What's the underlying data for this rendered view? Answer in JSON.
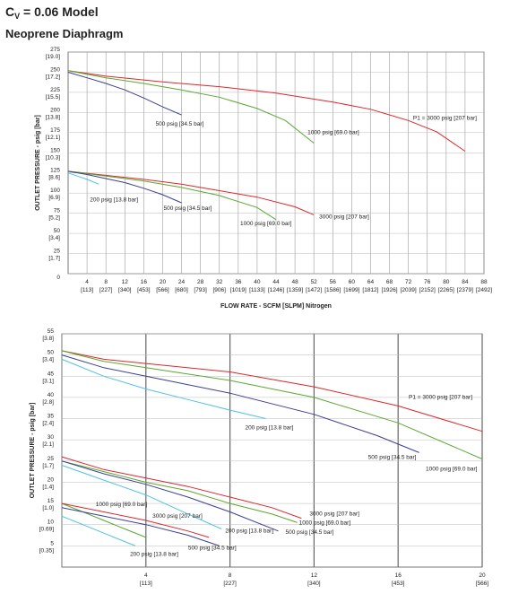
{
  "chart_data": [
    {
      "type": "line",
      "title": [
        "C",
        "V",
        " = 0.06 Model"
      ],
      "subtitle": "Neoprene Diaphragm",
      "x_label": "FLOW RATE - SCFM [SLPM] Nitrogen",
      "y_label": "OUTLET PRESSURE - psig [bar]",
      "xlim": [
        0,
        88
      ],
      "ylim": [
        0,
        275
      ],
      "grid": true,
      "xticks": [
        {
          "value": 4,
          "label": "4",
          "sublabel": "[113]"
        },
        {
          "value": 8,
          "label": "8",
          "sublabel": "[227]"
        },
        {
          "value": 12,
          "label": "12",
          "sublabel": "[340]"
        },
        {
          "value": 16,
          "label": "16",
          "sublabel": "[453]"
        },
        {
          "value": 20,
          "label": "20",
          "sublabel": "[566]"
        },
        {
          "value": 24,
          "label": "24",
          "sublabel": "[680]"
        },
        {
          "value": 28,
          "label": "28",
          "sublabel": "[793]"
        },
        {
          "value": 32,
          "label": "32",
          "sublabel": "[906]"
        },
        {
          "value": 36,
          "label": "36",
          "sublabel": "[1019]"
        },
        {
          "value": 40,
          "label": "40",
          "sublabel": "[1133]"
        },
        {
          "value": 44,
          "label": "44",
          "sublabel": "[1246]"
        },
        {
          "value": 48,
          "label": "48",
          "sublabel": "[1359]"
        },
        {
          "value": 52,
          "label": "52",
          "sublabel": "[1472]"
        },
        {
          "value": 56,
          "label": "56",
          "sublabel": "[1586]"
        },
        {
          "value": 60,
          "label": "60",
          "sublabel": "[1699]"
        },
        {
          "value": 64,
          "label": "64",
          "sublabel": "[1812]"
        },
        {
          "value": 68,
          "label": "68",
          "sublabel": "[1926]"
        },
        {
          "value": 72,
          "label": "72",
          "sublabel": "[2039]"
        },
        {
          "value": 76,
          "label": "76",
          "sublabel": "[2152]"
        },
        {
          "value": 80,
          "label": "80",
          "sublabel": "[2265]"
        },
        {
          "value": 84,
          "label": "84",
          "sublabel": "[2379]"
        },
        {
          "value": 88,
          "label": "88",
          "sublabel": "[2492]"
        }
      ],
      "yticks": [
        0,
        {
          "value": 25,
          "label": "25",
          "sublabel": "[1.7]"
        },
        {
          "value": 50,
          "label": "50",
          "sublabel": "[3.4]"
        },
        {
          "value": 75,
          "label": "75",
          "sublabel": "[5.2]"
        },
        {
          "value": 100,
          "label": "100",
          "sublabel": "[6.9]"
        },
        {
          "value": 125,
          "label": "125",
          "sublabel": "[8.6]"
        },
        {
          "value": 150,
          "label": "150",
          "sublabel": "[10.3]"
        },
        {
          "value": 175,
          "label": "175",
          "sublabel": "[12.1]"
        },
        {
          "value": 200,
          "label": "200",
          "sublabel": "[13.8]"
        },
        {
          "value": 225,
          "label": "225",
          "sublabel": "[15.5]"
        },
        {
          "value": 250,
          "label": "250",
          "sublabel": "[17.2]"
        },
        {
          "value": 275,
          "label": "275",
          "sublabel": "[19.0]"
        }
      ],
      "series": [
        {
          "name": "P1 = 3000 psig [207 bar]",
          "color": "#e0262b",
          "x": [
            0,
            8,
            20,
            32,
            44,
            56,
            64,
            72,
            78,
            84
          ],
          "values": [
            252,
            245,
            238,
            232,
            224,
            213,
            204,
            190,
            176,
            152
          ]
        },
        {
          "name": "1000 psig [69.0 bar]",
          "color": "#5aa832",
          "x": [
            0,
            8,
            16,
            24,
            32,
            40,
            46,
            52
          ],
          "values": [
            252,
            243,
            236,
            228,
            219,
            205,
            190,
            162
          ]
        },
        {
          "name": "500 psig [34.5 bar]",
          "color": "#3a3f8f",
          "x": [
            0,
            4,
            8,
            12,
            16,
            20,
            24
          ],
          "values": [
            250,
            243,
            236,
            228,
            218,
            207,
            197
          ]
        },
        {
          "name": "3000 psig [207 bar]",
          "color": "#e0262b",
          "x": [
            0,
            8,
            16,
            24,
            32,
            40,
            48,
            52
          ],
          "values": [
            127,
            122,
            117,
            111,
            103,
            95,
            83,
            73
          ]
        },
        {
          "name": "1000 psig [69.0 bar]",
          "color": "#5aa832",
          "x": [
            0,
            8,
            16,
            24,
            32,
            40,
            44
          ],
          "values": [
            127,
            121,
            115,
            107,
            97,
            82,
            67
          ]
        },
        {
          "name": "500 psig [34.5 bar]",
          "color": "#3a3f8f",
          "x": [
            0,
            4,
            8,
            12,
            16,
            20,
            24
          ],
          "values": [
            127,
            123,
            118,
            113,
            106,
            98,
            88
          ]
        },
        {
          "name": "200 psig [13.8 bar]",
          "color": "#4ec3e0",
          "x": [
            0,
            2,
            4,
            6.5
          ],
          "values": [
            125,
            121,
            117,
            111
          ]
        }
      ]
    },
    {
      "type": "line",
      "y_label": "OUTLET PRESSURE - psig [bar]",
      "xlim": [
        0,
        20
      ],
      "ylim": [
        0,
        55
      ],
      "grid": true,
      "xticks": [
        {
          "value": 4,
          "label": "4",
          "sublabel": "[113]"
        },
        {
          "value": 8,
          "label": "8",
          "sublabel": "[227]"
        },
        {
          "value": 12,
          "label": "12",
          "sublabel": "[340]"
        },
        {
          "value": 16,
          "label": "16",
          "sublabel": "[453]"
        },
        {
          "value": 20,
          "label": "20",
          "sublabel": "[566]"
        }
      ],
      "yticks": [
        {
          "value": 5,
          "label": "5",
          "sublabel": "[0.35]"
        },
        {
          "value": 10,
          "label": "10",
          "sublabel": "[0.69]"
        },
        {
          "value": 15,
          "label": "15",
          "sublabel": "[1.0]"
        },
        {
          "value": 20,
          "label": "20",
          "sublabel": "[1.4]"
        },
        {
          "value": 25,
          "label": "25",
          "sublabel": "[1.7]"
        },
        {
          "value": 30,
          "label": "30",
          "sublabel": "[2.1]"
        },
        {
          "value": 35,
          "label": "35",
          "sublabel": "[2.4]"
        },
        {
          "value": 40,
          "label": "40",
          "sublabel": "[2.8]"
        },
        {
          "value": 45,
          "label": "45",
          "sublabel": "[3.1]"
        },
        {
          "value": 50,
          "label": "50",
          "sublabel": "[3.4]"
        },
        {
          "value": 55,
          "label": "55",
          "sublabel": "[3.8]"
        }
      ],
      "series": [
        {
          "name": "P1 = 3000 psig [207 bar]",
          "color": "#e0262b",
          "x": [
            0,
            2,
            4,
            8,
            12,
            16,
            20
          ],
          "values": [
            51,
            49,
            48,
            46,
            42.5,
            38,
            32
          ]
        },
        {
          "name": "1000 psig [69.0 bar]",
          "color": "#5aa832",
          "x": [
            0,
            2,
            4,
            8,
            12,
            16,
            20
          ],
          "values": [
            51,
            48.5,
            47,
            44,
            40,
            34,
            25.5
          ]
        },
        {
          "name": "500 psig [34.5 bar]",
          "color": "#3a3f8f",
          "x": [
            0,
            2,
            4,
            8,
            12,
            15,
            17
          ],
          "values": [
            50,
            47,
            45,
            41,
            36,
            31,
            27
          ]
        },
        {
          "name": "200 psig [13.8 bar]",
          "color": "#4ec3e0",
          "x": [
            0,
            2,
            4,
            6,
            8,
            9.7
          ],
          "values": [
            49,
            45,
            42,
            39.5,
            37,
            35
          ]
        },
        {
          "name": "3000 psig [207 bar]",
          "color": "#e0262b",
          "x": [
            0,
            2,
            4,
            6,
            8,
            10,
            11.4
          ],
          "values": [
            26,
            23,
            21,
            19,
            16.5,
            14,
            11.5
          ]
        },
        {
          "name": "1000 psig [69.0 bar]",
          "color": "#5aa832",
          "x": [
            0,
            2,
            4,
            6,
            8,
            10,
            11.2
          ],
          "values": [
            25,
            22.5,
            20,
            18,
            15,
            12.5,
            10.5
          ]
        },
        {
          "name": "500 psig [34.5 bar]",
          "color": "#3a3f8f",
          "x": [
            0,
            2,
            4,
            6,
            8,
            10.3
          ],
          "values": [
            25,
            22,
            19.5,
            16.5,
            13,
            8.5
          ]
        },
        {
          "name": "200 psig [13.8 bar]",
          "color": "#4ec3e0",
          "x": [
            0,
            2,
            4,
            6,
            7.6
          ],
          "values": [
            24,
            20.5,
            17,
            12.5,
            9
          ]
        },
        {
          "name": "1000 psig [69.0 bar]",
          "color": "#5aa832",
          "x": [
            0,
            1,
            2,
            3,
            4
          ],
          "values": [
            15,
            13,
            11,
            9,
            7
          ]
        },
        {
          "name": "3000 psig [207 bar]",
          "color": "#e0262b",
          "x": [
            0,
            2,
            4,
            6,
            7
          ],
          "values": [
            15,
            13,
            11,
            8.5,
            7
          ]
        },
        {
          "name": "500 psig [34.5 bar]",
          "color": "#3a3f8f",
          "x": [
            0,
            2,
            4,
            6,
            7.5
          ],
          "values": [
            14,
            12,
            10,
            7.5,
            5
          ]
        },
        {
          "name": "200 psig [13.8 bar]",
          "color": "#4ec3e0",
          "x": [
            0,
            1,
            2,
            3.5
          ],
          "values": [
            12,
            10,
            8,
            5
          ]
        }
      ]
    }
  ]
}
